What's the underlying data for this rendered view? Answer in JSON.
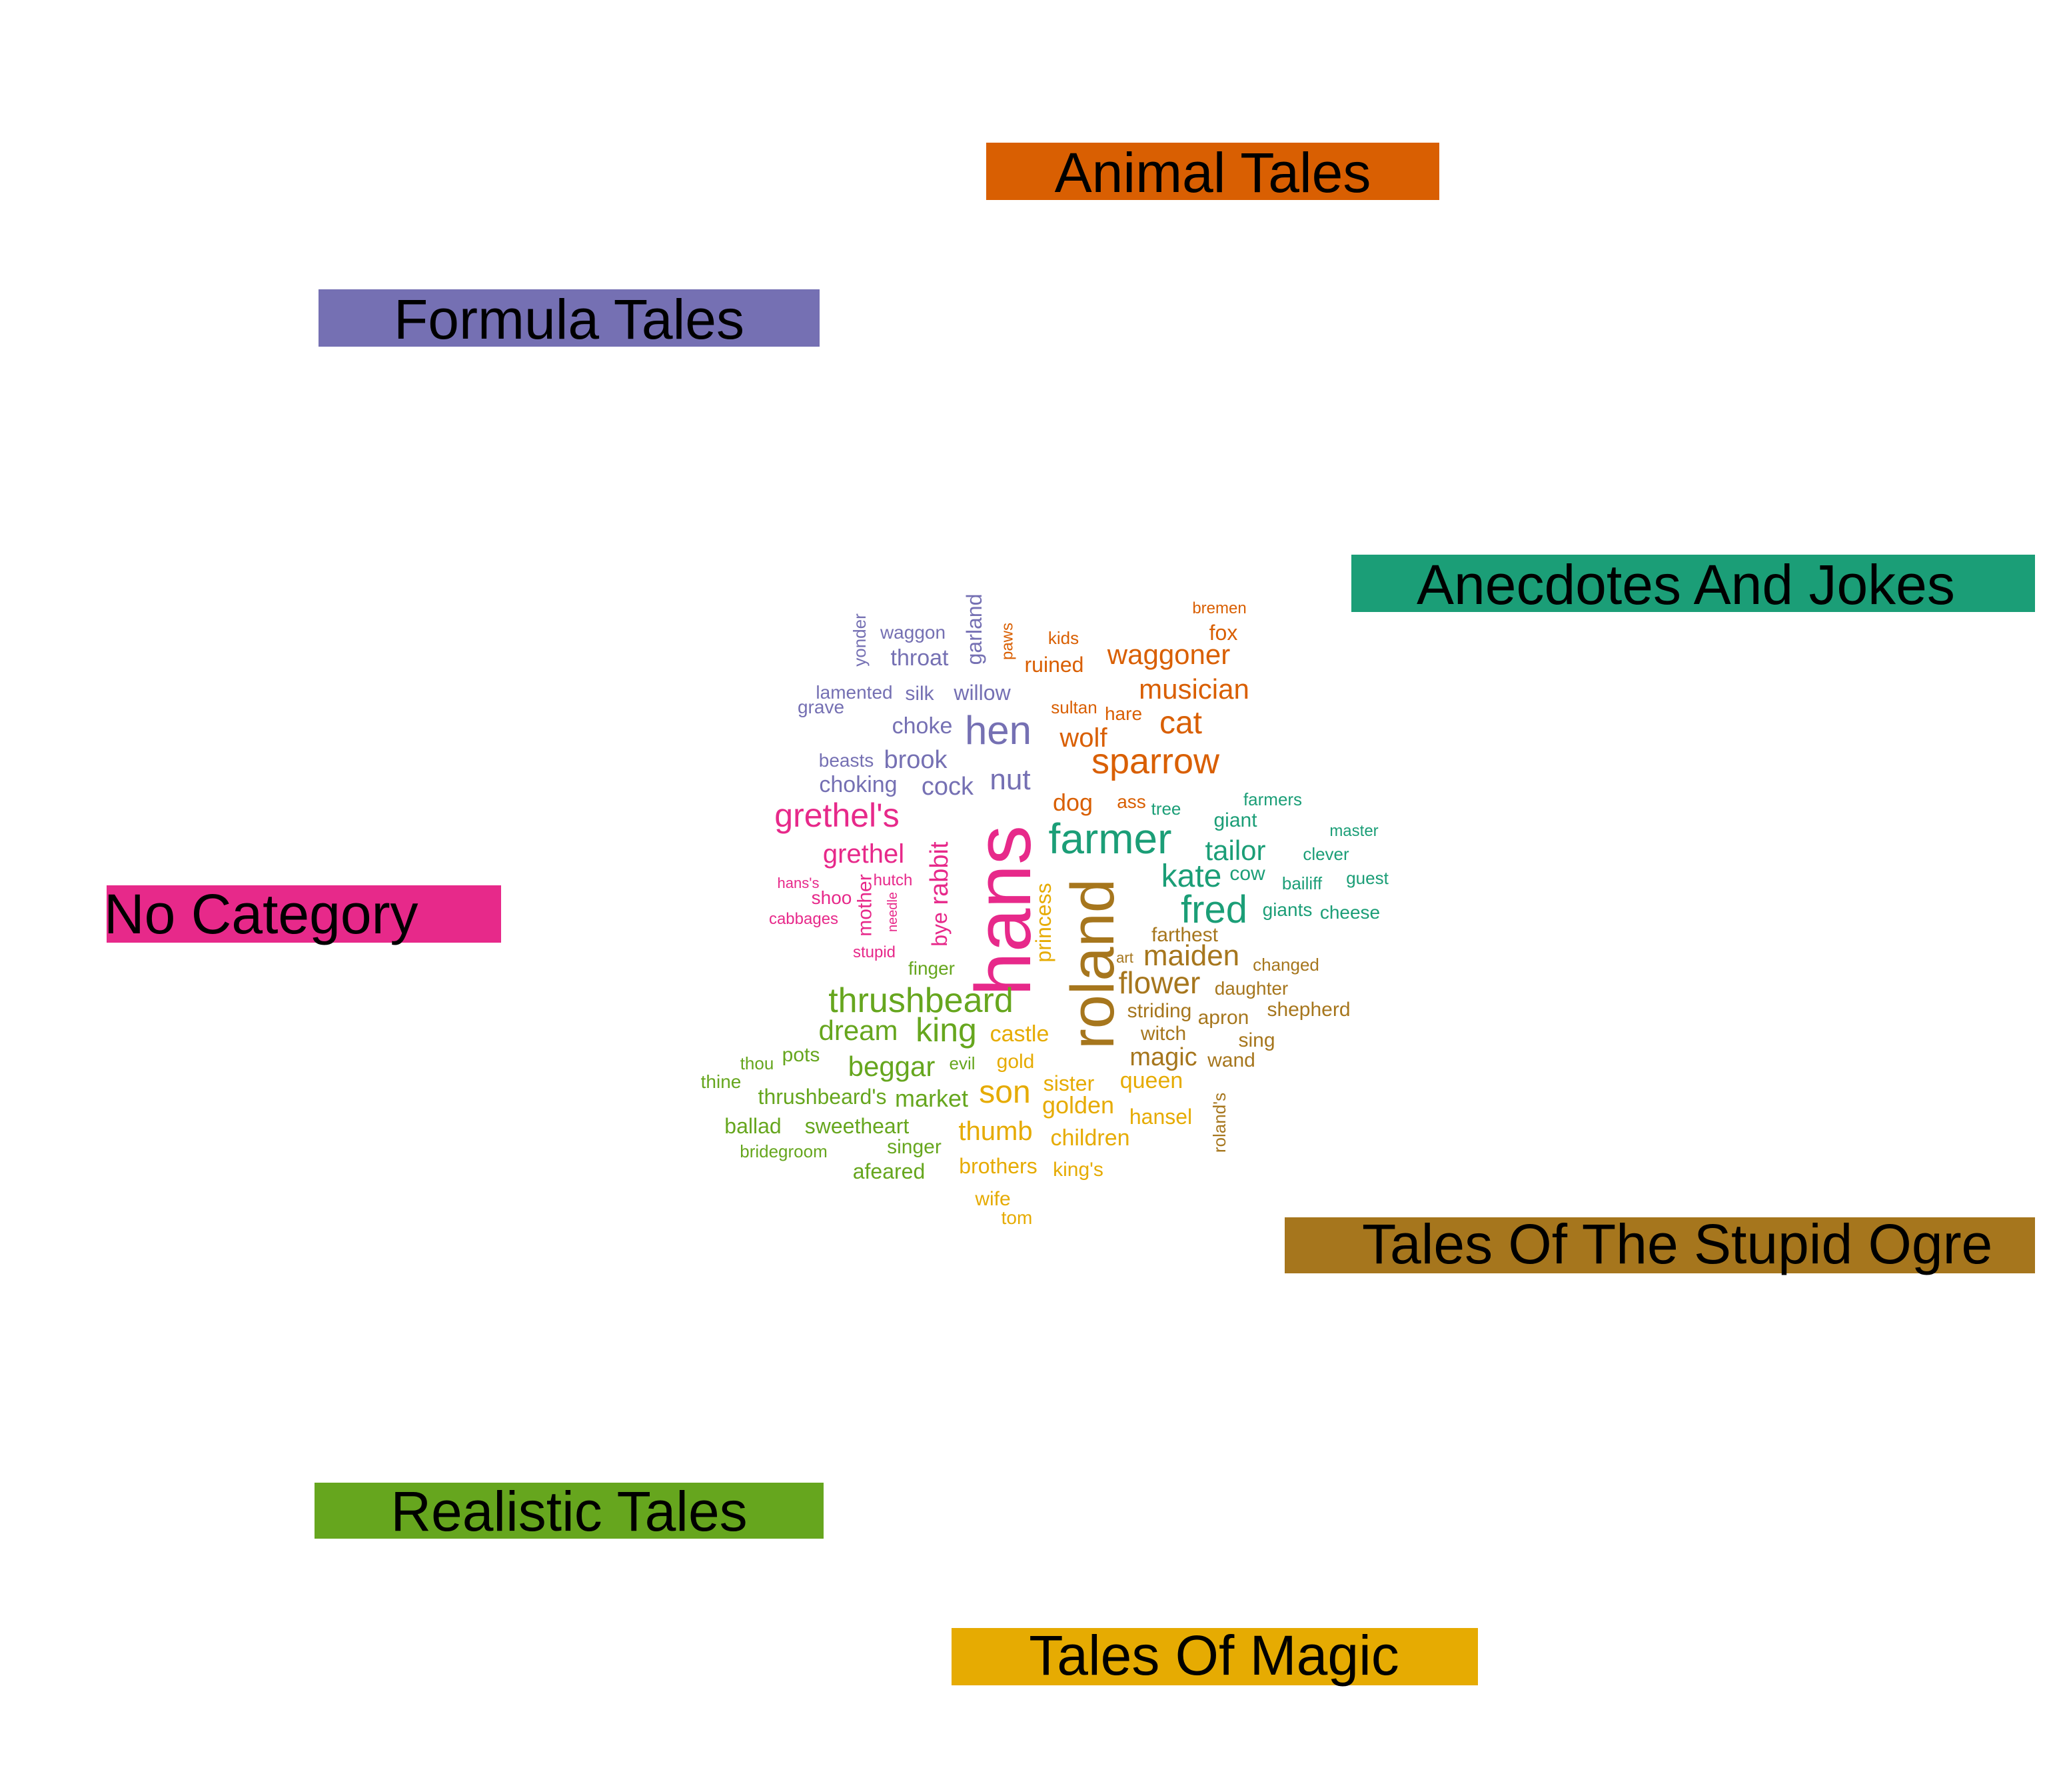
{
  "palette": {
    "Anecdotes And Jokes": "#1b9e77",
    "Animal Tales": "#d95f02",
    "Formula Tales": "#7570b3",
    "No Category": "#e7298a",
    "Realistic Tales": "#66a61e",
    "Tales Of Magic": "#e6ab02",
    "Tales Of The Stupid Ogre": "#a6761d"
  },
  "categories": [
    {
      "id": "animal",
      "label": "Animal Tales",
      "palette_key": "Animal Tales"
    },
    {
      "id": "formula",
      "label": "Formula Tales",
      "palette_key": "Formula Tales"
    },
    {
      "id": "anecdotes",
      "label": "Anecdotes And Jokes",
      "palette_key": "Anecdotes And Jokes"
    },
    {
      "id": "nocat",
      "label": "No Category",
      "palette_key": "No Category"
    },
    {
      "id": "ogre",
      "label": "Tales Of The Stupid Ogre",
      "palette_key": "Tales Of The Stupid Ogre"
    },
    {
      "id": "realistic",
      "label": "Realistic Tales",
      "palette_key": "Realistic Tales"
    },
    {
      "id": "magic",
      "label": "Tales Of Magic",
      "palette_key": "Tales Of Magic"
    }
  ],
  "words": [
    {
      "text": "hans",
      "category": "No Category",
      "vertical": true
    },
    {
      "text": "grethel's",
      "category": "No Category"
    },
    {
      "text": "grethel",
      "category": "No Category"
    },
    {
      "text": "rabbit",
      "category": "No Category",
      "vertical": true
    },
    {
      "text": "bye",
      "category": "No Category",
      "vertical": true
    },
    {
      "text": "mother",
      "category": "No Category",
      "vertical": true
    },
    {
      "text": "shoo",
      "category": "No Category"
    },
    {
      "text": "hans's",
      "category": "No Category"
    },
    {
      "text": "hutch",
      "category": "No Category"
    },
    {
      "text": "needle",
      "category": "No Category",
      "vertical": true
    },
    {
      "text": "cabbages",
      "category": "No Category"
    },
    {
      "text": "stupid",
      "category": "No Category"
    },
    {
      "text": "hen",
      "category": "Formula Tales"
    },
    {
      "text": "nut",
      "category": "Formula Tales"
    },
    {
      "text": "cock",
      "category": "Formula Tales"
    },
    {
      "text": "brook",
      "category": "Formula Tales"
    },
    {
      "text": "choking",
      "category": "Formula Tales"
    },
    {
      "text": "choke",
      "category": "Formula Tales"
    },
    {
      "text": "beasts",
      "category": "Formula Tales"
    },
    {
      "text": "silk",
      "category": "Formula Tales"
    },
    {
      "text": "willow",
      "category": "Formula Tales"
    },
    {
      "text": "lamented",
      "category": "Formula Tales"
    },
    {
      "text": "grave",
      "category": "Formula Tales"
    },
    {
      "text": "throat",
      "category": "Formula Tales"
    },
    {
      "text": "waggon",
      "category": "Formula Tales"
    },
    {
      "text": "yonder",
      "category": "Formula Tales",
      "vertical": true
    },
    {
      "text": "garland",
      "category": "Formula Tales",
      "vertical": true
    },
    {
      "text": "sparrow",
      "category": "Animal Tales"
    },
    {
      "text": "cat",
      "category": "Animal Tales"
    },
    {
      "text": "wolf",
      "category": "Animal Tales"
    },
    {
      "text": "musician",
      "category": "Animal Tales"
    },
    {
      "text": "waggoner",
      "category": "Animal Tales"
    },
    {
      "text": "dog",
      "category": "Animal Tales"
    },
    {
      "text": "ass",
      "category": "Animal Tales"
    },
    {
      "text": "hare",
      "category": "Animal Tales"
    },
    {
      "text": "sultan",
      "category": "Animal Tales"
    },
    {
      "text": "ruined",
      "category": "Animal Tales"
    },
    {
      "text": "kids",
      "category": "Animal Tales"
    },
    {
      "text": "fox",
      "category": "Animal Tales"
    },
    {
      "text": "bremen",
      "category": "Animal Tales"
    },
    {
      "text": "paws",
      "category": "Animal Tales",
      "vertical": true
    },
    {
      "text": "farmer",
      "category": "Anecdotes And Jokes"
    },
    {
      "text": "fred",
      "category": "Anecdotes And Jokes"
    },
    {
      "text": "kate",
      "category": "Anecdotes And Jokes"
    },
    {
      "text": "tailor",
      "category": "Anecdotes And Jokes"
    },
    {
      "text": "giant",
      "category": "Anecdotes And Jokes"
    },
    {
      "text": "cow",
      "category": "Anecdotes And Jokes"
    },
    {
      "text": "giants",
      "category": "Anecdotes And Jokes"
    },
    {
      "text": "bailiff",
      "category": "Anecdotes And Jokes"
    },
    {
      "text": "cheese",
      "category": "Anecdotes And Jokes"
    },
    {
      "text": "guest",
      "category": "Anecdotes And Jokes"
    },
    {
      "text": "clever",
      "category": "Anecdotes And Jokes"
    },
    {
      "text": "master",
      "category": "Anecdotes And Jokes"
    },
    {
      "text": "farmers",
      "category": "Anecdotes And Jokes"
    },
    {
      "text": "tree",
      "category": "Anecdotes And Jokes"
    },
    {
      "text": "roland",
      "category": "Tales Of The Stupid Ogre",
      "vertical": true
    },
    {
      "text": "flower",
      "category": "Tales Of The Stupid Ogre"
    },
    {
      "text": "maiden",
      "category": "Tales Of The Stupid Ogre"
    },
    {
      "text": "magic",
      "category": "Tales Of The Stupid Ogre"
    },
    {
      "text": "farthest",
      "category": "Tales Of The Stupid Ogre"
    },
    {
      "text": "art",
      "category": "Tales Of The Stupid Ogre"
    },
    {
      "text": "striding",
      "category": "Tales Of The Stupid Ogre"
    },
    {
      "text": "witch",
      "category": "Tales Of The Stupid Ogre"
    },
    {
      "text": "apron",
      "category": "Tales Of The Stupid Ogre"
    },
    {
      "text": "daughter",
      "category": "Tales Of The Stupid Ogre"
    },
    {
      "text": "changed",
      "category": "Tales Of The Stupid Ogre"
    },
    {
      "text": "shepherd",
      "category": "Tales Of The Stupid Ogre"
    },
    {
      "text": "sing",
      "category": "Tales Of The Stupid Ogre"
    },
    {
      "text": "wand",
      "category": "Tales Of The Stupid Ogre"
    },
    {
      "text": "roland's",
      "category": "Tales Of The Stupid Ogre",
      "vertical": true
    },
    {
      "text": "thrushbeard",
      "category": "Realistic Tales"
    },
    {
      "text": "king",
      "category": "Realistic Tales"
    },
    {
      "text": "dream",
      "category": "Realistic Tales"
    },
    {
      "text": "beggar",
      "category": "Realistic Tales"
    },
    {
      "text": "market",
      "category": "Realistic Tales"
    },
    {
      "text": "thrushbeard's",
      "category": "Realistic Tales"
    },
    {
      "text": "sweetheart",
      "category": "Realistic Tales"
    },
    {
      "text": "ballad",
      "category": "Realistic Tales"
    },
    {
      "text": "pots",
      "category": "Realistic Tales"
    },
    {
      "text": "thou",
      "category": "Realistic Tales"
    },
    {
      "text": "thine",
      "category": "Realistic Tales"
    },
    {
      "text": "singer",
      "category": "Realistic Tales"
    },
    {
      "text": "bridegroom",
      "category": "Realistic Tales"
    },
    {
      "text": "afeared",
      "category": "Realistic Tales"
    },
    {
      "text": "evil",
      "category": "Realistic Tales"
    },
    {
      "text": "finger",
      "category": "Realistic Tales"
    },
    {
      "text": "son",
      "category": "Tales Of Magic"
    },
    {
      "text": "thumb",
      "category": "Tales Of Magic"
    },
    {
      "text": "princess",
      "category": "Tales Of Magic",
      "vertical": true
    },
    {
      "text": "castle",
      "category": "Tales Of Magic"
    },
    {
      "text": "gold",
      "category": "Tales Of Magic"
    },
    {
      "text": "golden",
      "category": "Tales Of Magic"
    },
    {
      "text": "sister",
      "category": "Tales Of Magic"
    },
    {
      "text": "queen",
      "category": "Tales Of Magic"
    },
    {
      "text": "children",
      "category": "Tales Of Magic"
    },
    {
      "text": "hansel",
      "category": "Tales Of Magic"
    },
    {
      "text": "brothers",
      "category": "Tales Of Magic"
    },
    {
      "text": "king's",
      "category": "Tales Of Magic"
    },
    {
      "text": "wife",
      "category": "Tales Of Magic"
    },
    {
      "text": "tom",
      "category": "Tales Of Magic"
    }
  ]
}
